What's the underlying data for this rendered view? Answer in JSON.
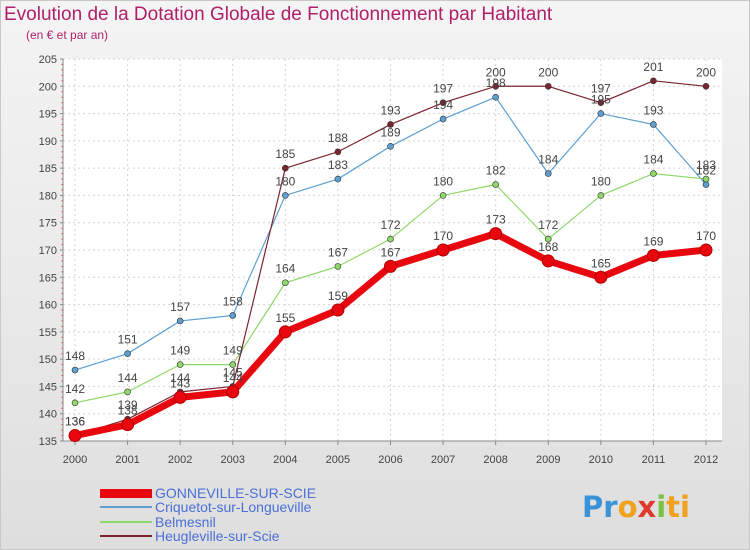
{
  "chart_data": {
    "type": "line",
    "title": "Evolution de la Dotation Globale de Fonctionnement par Habitant",
    "subtitle": "(en € et par an)",
    "xlabel": "",
    "ylabel": "",
    "ylim": [
      135,
      205
    ],
    "grid": true,
    "legend_position": "bottom-left",
    "categories": [
      "2000",
      "2001",
      "2002",
      "2003",
      "2004",
      "2005",
      "2006",
      "2007",
      "2008",
      "2009",
      "2010",
      "2011",
      "2012"
    ],
    "yticks": [
      135,
      140,
      145,
      150,
      155,
      160,
      165,
      170,
      175,
      180,
      185,
      190,
      195,
      200,
      205
    ],
    "series": [
      {
        "name": "GONNEVILLE-SUR-SCIE",
        "color": "#e8070e",
        "values": [
          136,
          138,
          143,
          144,
          155,
          159,
          167,
          170,
          173,
          168,
          165,
          169,
          170
        ]
      },
      {
        "name": "Criquetot-sur-Longueville",
        "color": "#5d9fd1",
        "values": [
          148,
          151,
          157,
          158,
          180,
          183,
          189,
          194,
          198,
          184,
          195,
          193,
          182
        ]
      },
      {
        "name": "Belmesnil",
        "color": "#8fd86a",
        "values": [
          142,
          144,
          149,
          149,
          164,
          167,
          172,
          180,
          182,
          172,
          180,
          184,
          183
        ]
      },
      {
        "name": "Heugleville-sur-Scie",
        "color": "#7a2430",
        "values": [
          136,
          139,
          144,
          145,
          185,
          188,
          193,
          197,
          200,
          200,
          197,
          201,
          200
        ]
      }
    ]
  },
  "logo": {
    "text_parts": [
      "Pr",
      "o",
      "x",
      "i",
      "ti"
    ],
    "colors": [
      "#3a93d8",
      "#f0a21e",
      "#e03a2e",
      "#7cc242",
      "#f0a21e"
    ]
  }
}
